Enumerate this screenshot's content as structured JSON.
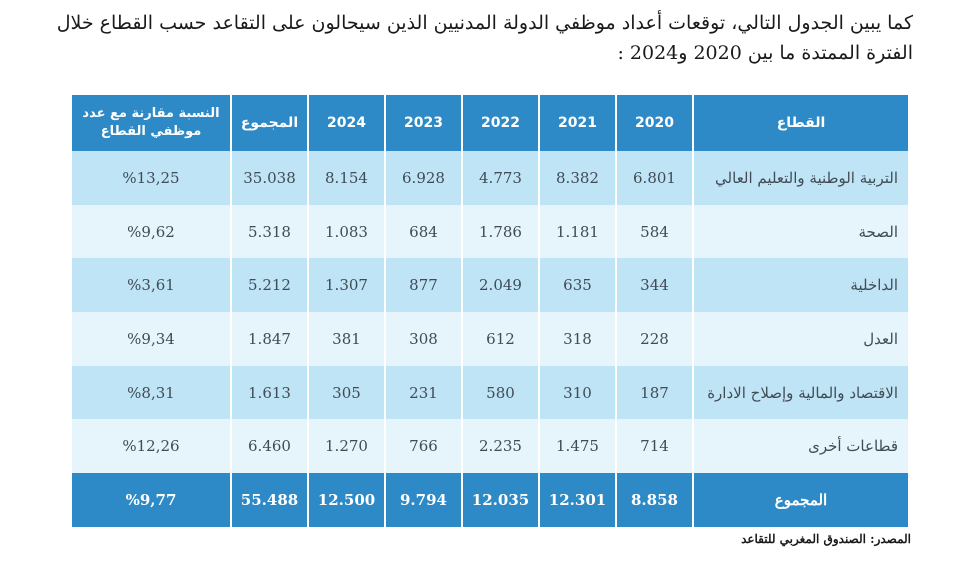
{
  "intro": {
    "line1": "كما يبين الجدول التالي، توقعات أعداد موظفي الدولة المدنيين الذين سيحالون على التقاعد حسب القطاع خلال",
    "line2": "الفترة الممتدة ما بين 2020 و2024 :"
  },
  "table": {
    "headers": {
      "sector": "القطاع",
      "y2020": "2020",
      "y2021": "2021",
      "y2022": "2022",
      "y2023": "2023",
      "y2024": "2024",
      "total": "المجموع",
      "ratio_line1": "النسبة مقارنة مع عدد",
      "ratio_line2": "موظفي القطاع"
    },
    "rows": [
      {
        "sector": "التربية الوطنية والتعليم العالي",
        "y2020": "6.801",
        "y2021": "8.382",
        "y2022": "4.773",
        "y2023": "6.928",
        "y2024": "8.154",
        "total": "35.038",
        "ratio": "%13,25"
      },
      {
        "sector": "الصحة",
        "y2020": "584",
        "y2021": "1.181",
        "y2022": "1.786",
        "y2023": "684",
        "y2024": "1.083",
        "total": "5.318",
        "ratio": "%9,62"
      },
      {
        "sector": "الداخلية",
        "y2020": "344",
        "y2021": "635",
        "y2022": "2.049",
        "y2023": "877",
        "y2024": "1.307",
        "total": "5.212",
        "ratio": "%3,61"
      },
      {
        "sector": "العدل",
        "y2020": "228",
        "y2021": "318",
        "y2022": "612",
        "y2023": "308",
        "y2024": "381",
        "total": "1.847",
        "ratio": "%9,34"
      },
      {
        "sector": "الاقتصاد والمالية وإصلاح الادارة",
        "y2020": "187",
        "y2021": "310",
        "y2022": "580",
        "y2023": "231",
        "y2024": "305",
        "total": "1.613",
        "ratio": "%8,31"
      },
      {
        "sector": "قطاعات أخرى",
        "y2020": "714",
        "y2021": "1.475",
        "y2022": "2.235",
        "y2023": "766",
        "y2024": "1.270",
        "total": "6.460",
        "ratio": "%12,26"
      }
    ],
    "footer": {
      "label": "المجموع",
      "y2020": "8.858",
      "y2021": "12.301",
      "y2022": "12.035",
      "y2023": "9.794",
      "y2024": "12.500",
      "total": "55.488",
      "ratio": "%9,77"
    }
  },
  "source": "المصدر: الصندوق المغربي للتقاعد"
}
